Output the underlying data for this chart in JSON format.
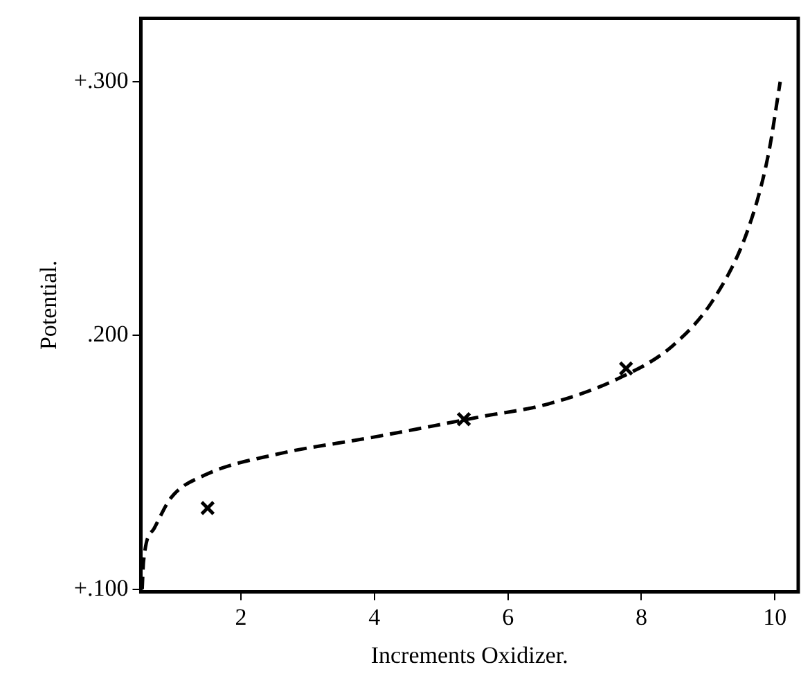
{
  "chart_data": {
    "type": "line",
    "xlabel": "Increments Oxidizer.",
    "ylabel": "Potential.",
    "xlim": [
      0.5,
      10.35
    ],
    "xticks": [
      2,
      4,
      6,
      8,
      10
    ],
    "ylim": [
      0.099,
      0.325
    ],
    "yticks": [
      {
        "value": 0.1,
        "label": "+.100"
      },
      {
        "value": 0.2,
        "label": ".200"
      },
      {
        "value": 0.3,
        "label": "+.300"
      }
    ],
    "grid": false,
    "legend": false,
    "series": [
      {
        "color": "#000000",
        "line_style": "dashed",
        "marker": "none",
        "x": [
          0.52,
          0.54,
          0.7,
          0.95,
          1.46,
          2.5,
          4,
          5.6,
          6.6,
          7.65,
          8.47,
          9.1,
          9.6,
          9.9,
          10.08
        ],
        "values": [
          0.1,
          0.111,
          0.124,
          0.136,
          0.145,
          0.153,
          0.16,
          0.168,
          0.173,
          0.183,
          0.196,
          0.215,
          0.242,
          0.271,
          0.3
        ]
      },
      {
        "type": "scatter",
        "color": "#000000",
        "marker": "cross",
        "x": [
          1.5,
          5.34,
          7.77
        ],
        "values": [
          0.132,
          0.167,
          0.187
        ]
      }
    ]
  }
}
